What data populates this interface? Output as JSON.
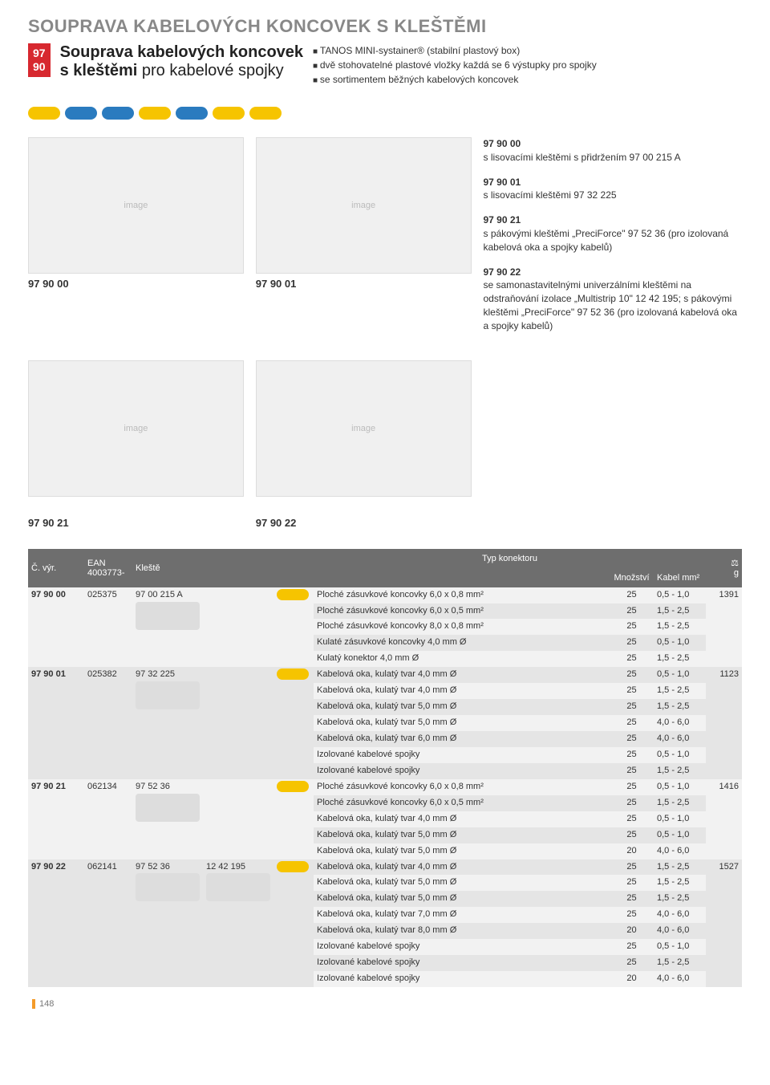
{
  "page_number": "148",
  "main_title": "SOUPRAVA KABELOVÝCH KONCOVEK S KLEŠTĚMI",
  "badge": {
    "line1": "97",
    "line2": "90"
  },
  "sub_title_bold": "Souprava kabelových koncovek",
  "sub_title_line2_bold": "s kleštěmi",
  "sub_title_line2_light": " pro kabelové spojky",
  "bullets": [
    "TANOS MINI-systainer® (stabilní plastový box)",
    "dvě stohovatelné plastové vložky každá se 6 výstupky pro spojky",
    "se sortimentem běžných kabelových koncovek"
  ],
  "connector_colors": [
    "#f6c400",
    "#2a7bbf",
    "#2a7bbf",
    "#f6c400",
    "#2a7bbf",
    "#f6c400",
    "#f6c400"
  ],
  "grid_labels": {
    "a": "97 90 00",
    "b": "97 90 01",
    "c": "97 90 21",
    "d": "97 90 22"
  },
  "descriptions": [
    {
      "code": "97 90 00",
      "text": "s lisovacími kleštěmi s přidržením 97 00 215 A"
    },
    {
      "code": "97 90 01",
      "text": "s lisovacími kleštěmi 97 32 225"
    },
    {
      "code": "97 90 21",
      "text": "s pákovými kleštěmi „PreciForce\" 97 52 36 (pro izolovaná kabelová oka a spojky kabelů)"
    },
    {
      "code": "97 90 22",
      "text": "se samonastavitelnými univerzálními kleštěmi na odstraňování izolace „Multistrip 10\" 12 42 195; s pákovými kleštěmi „PreciForce\" 97 52 36 (pro izolovaná kabelová oka a spojky kabelů)"
    }
  ],
  "table": {
    "headers": {
      "id": "Č. výr.",
      "ean": "EAN 4003773-",
      "tool": "Kleště",
      "connector_group": "Typ konektoru",
      "qty": "Množství",
      "cable": "Kabel mm²",
      "weight": "g"
    },
    "groups": [
      {
        "id": "97 90 00",
        "ean": "025375",
        "tool1": "97 00 215 A",
        "tool2": "",
        "weight": "1391",
        "conn_color": "#f6c400",
        "rows": [
          {
            "t": "Ploché zásuvkové koncovky 6,0 x 0,8 mm²",
            "q": "25",
            "c": "0,5 - 1,0"
          },
          {
            "t": "Ploché zásuvkové koncovky 6,0 x 0,5 mm²",
            "q": "25",
            "c": "1,5 - 2,5"
          },
          {
            "t": "Ploché zásuvkové koncovky 8,0 x 0,8 mm²",
            "q": "25",
            "c": "1,5 - 2,5"
          },
          {
            "t": "Kulaté zásuvkové koncovky 4,0 mm Ø",
            "q": "25",
            "c": "0,5 - 1,0"
          },
          {
            "t": "Kulatý konektor 4,0 mm Ø",
            "q": "25",
            "c": "1,5 - 2,5"
          }
        ]
      },
      {
        "id": "97 90 01",
        "ean": "025382",
        "tool1": "97 32 225",
        "tool2": "",
        "weight": "1123",
        "conn_color": "#f6c400",
        "rows": [
          {
            "t": "Kabelová oka, kulatý tvar 4,0 mm Ø",
            "q": "25",
            "c": "0,5 - 1,0"
          },
          {
            "t": "Kabelová oka, kulatý tvar 4,0 mm Ø",
            "q": "25",
            "c": "1,5 - 2,5"
          },
          {
            "t": "Kabelová oka, kulatý tvar 5,0 mm Ø",
            "q": "25",
            "c": "1,5 - 2,5"
          },
          {
            "t": "Kabelová oka, kulatý tvar 5,0 mm Ø",
            "q": "25",
            "c": "4,0 - 6,0"
          },
          {
            "t": "Kabelová oka, kulatý tvar 6,0 mm Ø",
            "q": "25",
            "c": "4,0 - 6,0"
          },
          {
            "t": "Izolované kabelové spojky",
            "q": "25",
            "c": "0,5 - 1,0"
          },
          {
            "t": "Izolované kabelové spojky",
            "q": "25",
            "c": "1,5 - 2,5"
          }
        ]
      },
      {
        "id": "97 90 21",
        "ean": "062134",
        "tool1": "97 52 36",
        "tool2": "",
        "weight": "1416",
        "conn_color": "#f6c400",
        "rows": [
          {
            "t": "Ploché zásuvkové koncovky 6,0 x 0,8 mm²",
            "q": "25",
            "c": "0,5 - 1,0"
          },
          {
            "t": "Ploché zásuvkové koncovky 6,0 x 0,5 mm²",
            "q": "25",
            "c": "1,5 - 2,5"
          },
          {
            "t": "Kabelová oka, kulatý tvar 4,0 mm Ø",
            "q": "25",
            "c": "0,5 - 1,0"
          },
          {
            "t": "Kabelová oka, kulatý tvar 5,0 mm Ø",
            "q": "25",
            "c": "0,5 - 1,0"
          },
          {
            "t": "Kabelová oka, kulatý tvar 5,0 mm Ø",
            "q": "20",
            "c": "4,0 - 6,0"
          }
        ]
      },
      {
        "id": "97 90 22",
        "ean": "062141",
        "tool1": "97 52 36",
        "tool2": "12 42 195",
        "weight": "1527",
        "conn_color": "#f6c400",
        "rows": [
          {
            "t": "Kabelová oka, kulatý tvar 4,0 mm Ø",
            "q": "25",
            "c": "1,5 - 2,5"
          },
          {
            "t": "Kabelová oka, kulatý tvar 5,0 mm Ø",
            "q": "25",
            "c": "1,5 - 2,5"
          },
          {
            "t": "Kabelová oka, kulatý tvar 5,0 mm Ø",
            "q": "25",
            "c": "1,5 - 2,5"
          },
          {
            "t": "Kabelová oka, kulatý tvar 7,0 mm Ø",
            "q": "25",
            "c": "4,0 - 6,0"
          },
          {
            "t": "Kabelová oka, kulatý tvar 8,0 mm Ø",
            "q": "20",
            "c": "4,0 - 6,0"
          },
          {
            "t": "Izolované kabelové spojky",
            "q": "25",
            "c": "0,5 - 1,0"
          },
          {
            "t": "Izolované kabelové spojky",
            "q": "25",
            "c": "1,5 - 2,5"
          },
          {
            "t": "Izolované kabelové spojky",
            "q": "20",
            "c": "4,0 - 6,0"
          }
        ]
      }
    ]
  }
}
